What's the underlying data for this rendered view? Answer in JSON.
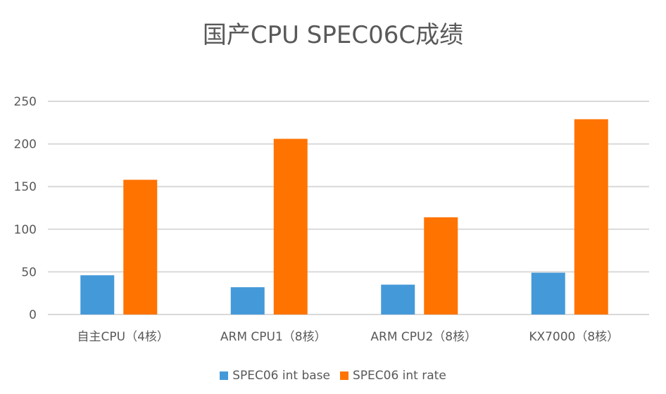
{
  "chart_data": {
    "type": "bar",
    "title": "国产CPU SPEC06C成绩",
    "categories": [
      "自主CPU（4核）",
      "ARM CPU1（8核）",
      "ARM CPU2（8核）",
      "KX7000（8核）"
    ],
    "series": [
      {
        "name": "SPEC06 int base",
        "color": "#4499D9",
        "values": [
          46,
          32,
          35,
          49
        ]
      },
      {
        "name": "SPEC06 int rate",
        "color": "#FF7300",
        "values": [
          158,
          206,
          114,
          229
        ]
      }
    ],
    "ylim": [
      0,
      250
    ],
    "yticks": [
      "0",
      "50",
      "100",
      "150",
      "200",
      "250"
    ],
    "grid": true,
    "legend": "bottom"
  }
}
